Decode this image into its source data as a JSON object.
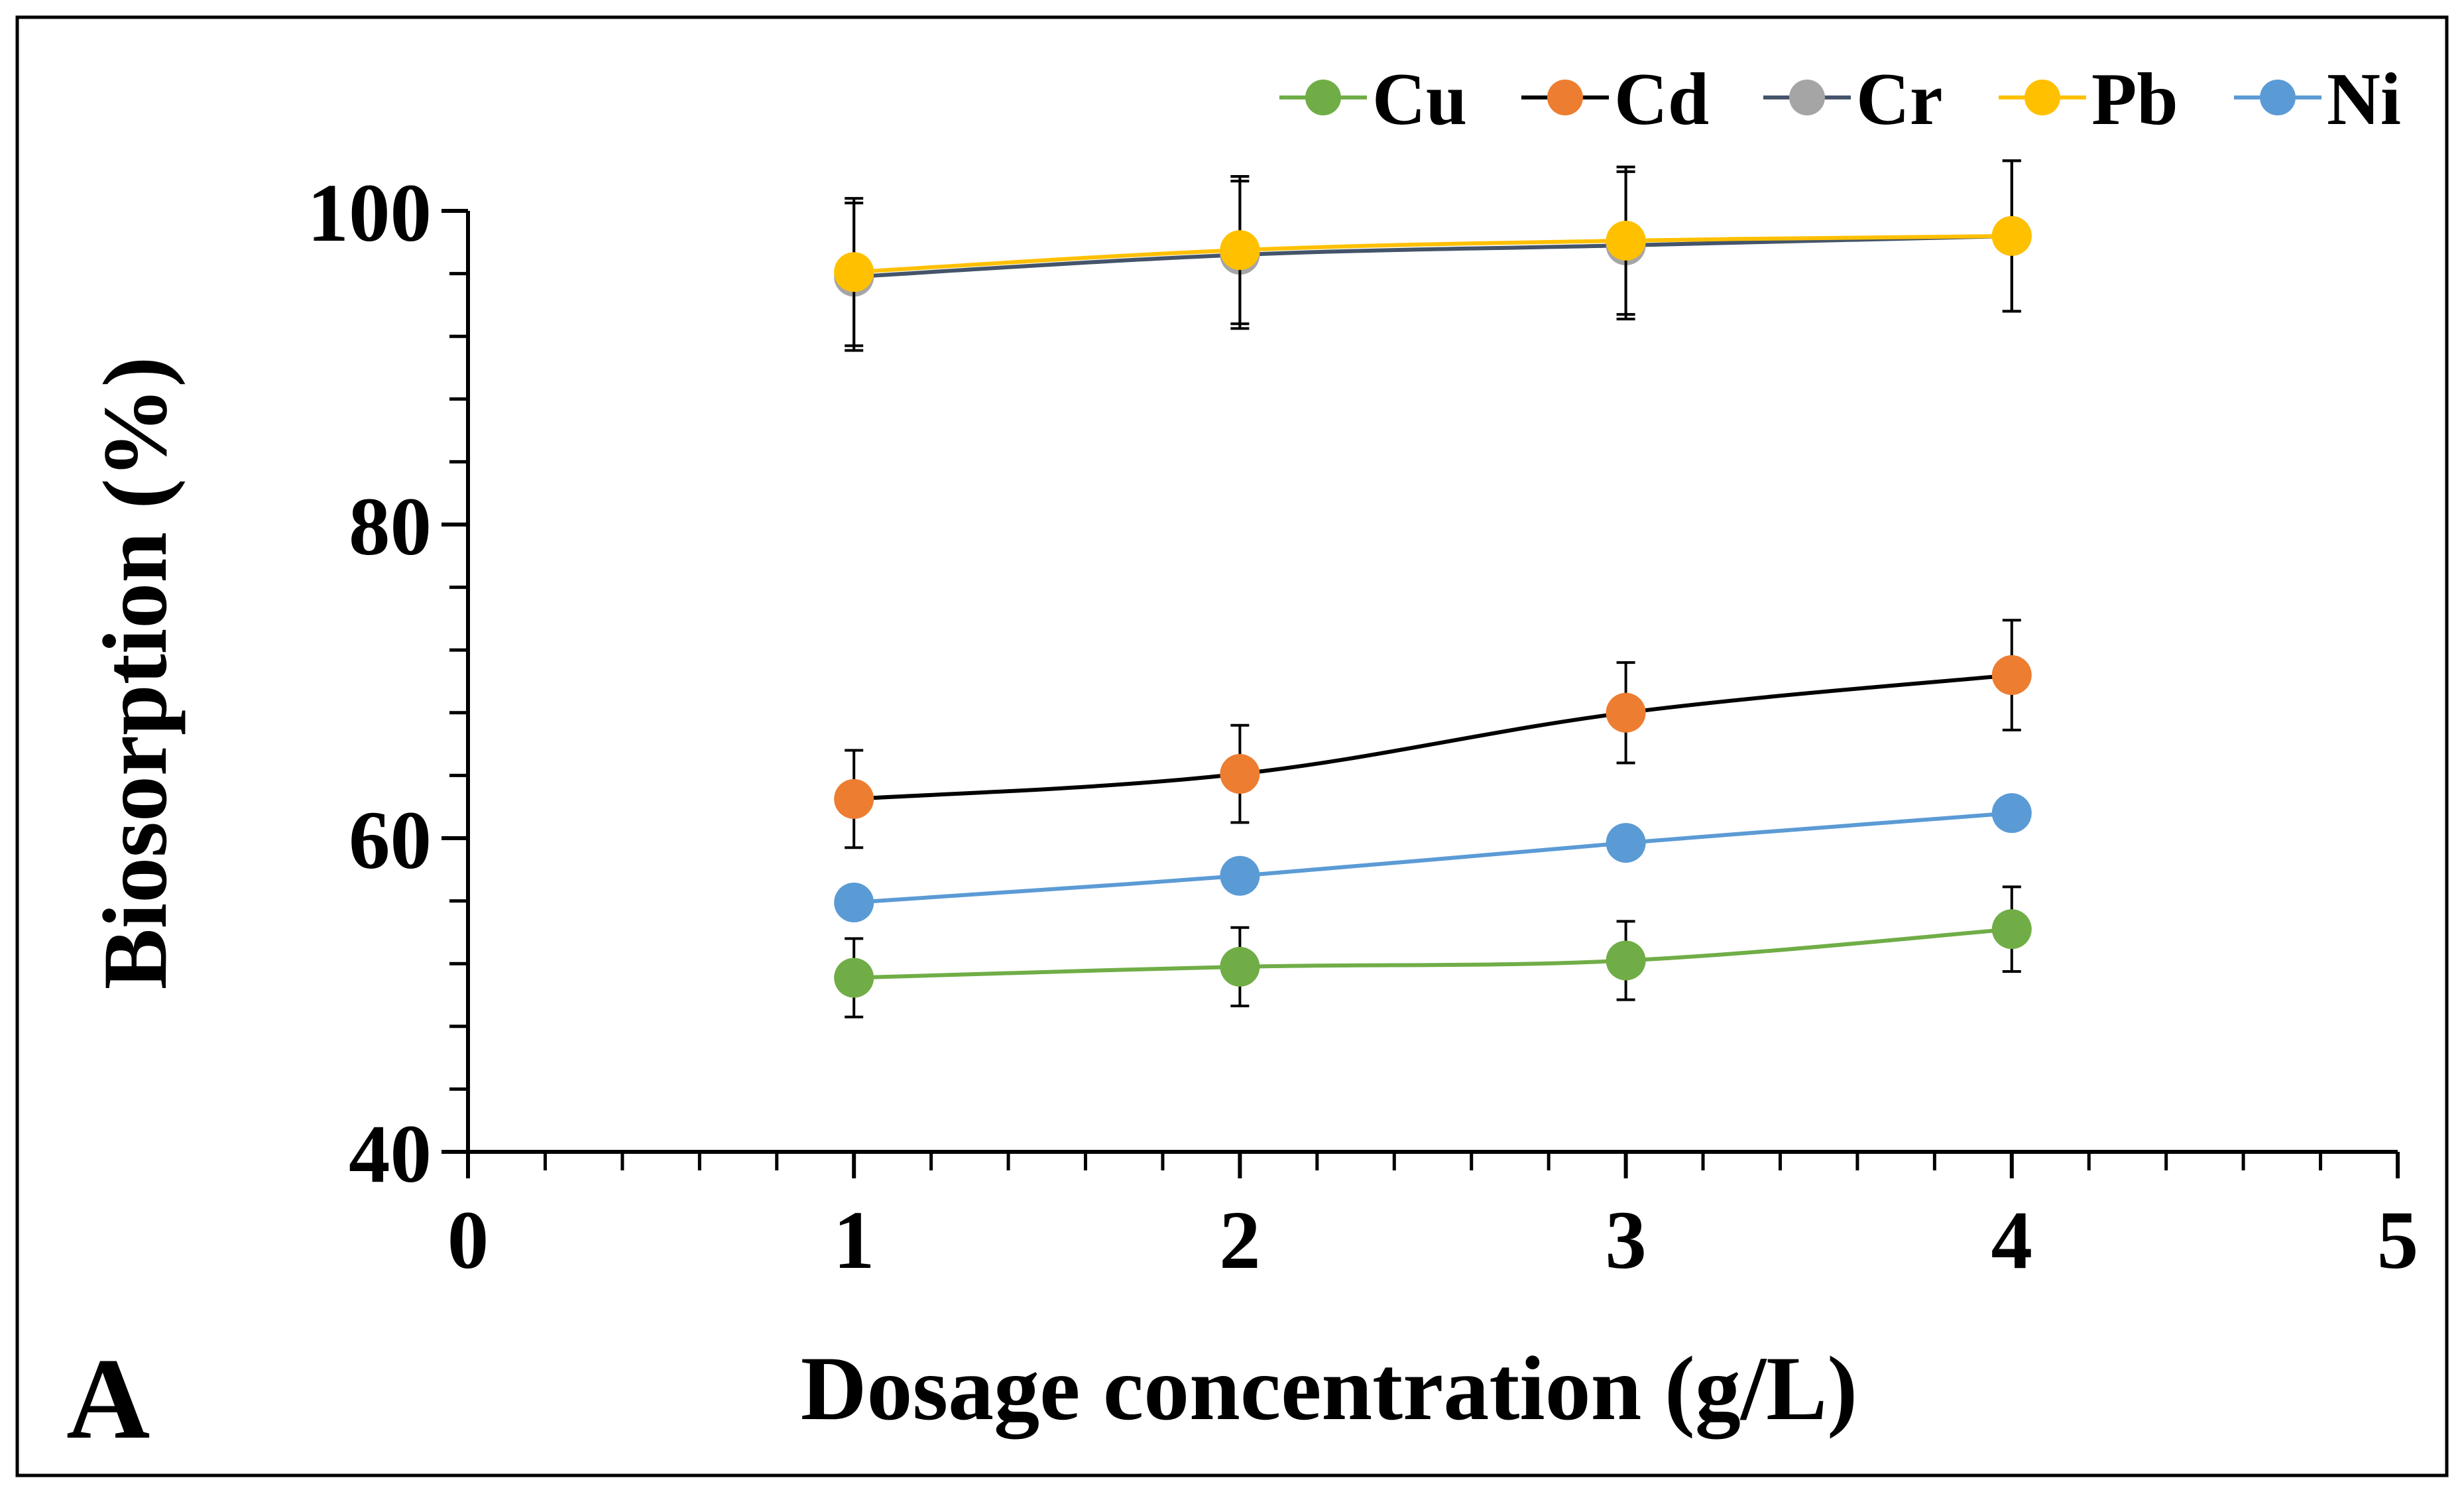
{
  "chart_data": {
    "type": "line",
    "panel_label": "A",
    "title": "",
    "xlabel": "Dosage concentration (g/L)",
    "ylabel": "Biosorption (%)",
    "xlim": [
      0,
      5
    ],
    "ylim": [
      40,
      100
    ],
    "x_major_ticks": [
      0,
      1,
      2,
      3,
      4,
      5
    ],
    "y_major_ticks": [
      40,
      60,
      80,
      100
    ],
    "x_minor_step": 0.2,
    "y_minor_step": 4,
    "grid": false,
    "legend_position": "top-right",
    "x": [
      1,
      2,
      3,
      4
    ],
    "series": [
      {
        "name": "Cu",
        "values": [
          51.1,
          51.8,
          52.2,
          54.2
        ],
        "error": [
          2.5,
          2.5,
          2.5,
          2.7
        ],
        "line_color": "#70AD47",
        "marker_color": "#70AD47"
      },
      {
        "name": "Cd",
        "values": [
          62.5,
          64.1,
          68.0,
          70.4
        ],
        "error": [
          3.1,
          3.1,
          3.2,
          3.5
        ],
        "line_color": "#000000",
        "marker_color": "#ED7D31"
      },
      {
        "name": "Cr",
        "values": [
          95.8,
          97.2,
          97.8,
          98.4
        ],
        "error": [
          4.7,
          4.7,
          4.7,
          4.8
        ],
        "line_color": "#44546A",
        "marker_color": "#A5A5A5"
      },
      {
        "name": "Pb",
        "values": [
          96.1,
          97.5,
          98.1,
          98.4
        ],
        "error": [
          4.7,
          4.7,
          4.7,
          4.8
        ],
        "line_color": "#FFC000",
        "marker_color": "#FFC000"
      },
      {
        "name": "Ni",
        "values": [
          55.9,
          57.6,
          59.7,
          61.6
        ],
        "error": [
          0,
          0,
          0,
          0
        ],
        "line_color": "#5B9BD5",
        "marker_color": "#5B9BD5"
      }
    ]
  }
}
